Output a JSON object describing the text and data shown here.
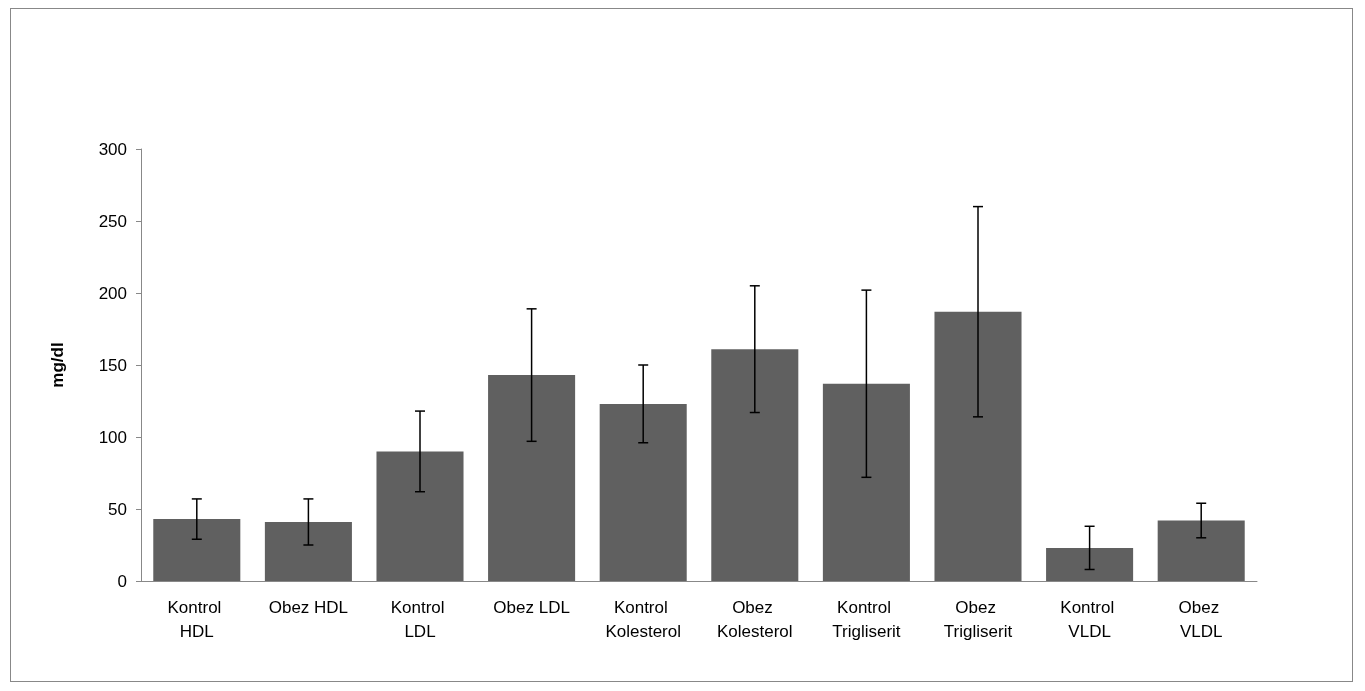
{
  "chart_data": {
    "type": "bar",
    "ylabel": "mg/dl",
    "categories": [
      "Kontrol HDL",
      "Obez HDL",
      "Kontrol LDL",
      "Obez LDL",
      "Kontrol Kolesterol",
      "Obez Kolesterol",
      "Kontrol Trigliserit",
      "Obez Trigliserit",
      "Kontrol VLDL",
      "Obez VLDL"
    ],
    "values": [
      43,
      41,
      90,
      143,
      123,
      161,
      137,
      187,
      23,
      42
    ],
    "errors": [
      14,
      16,
      28,
      46,
      27,
      44,
      65,
      73,
      15,
      12
    ],
    "color": "#606060",
    "ylim": [
      0,
      300
    ],
    "yticks": [
      0,
      50,
      100,
      150,
      200,
      250,
      300
    ],
    "grid": false
  }
}
